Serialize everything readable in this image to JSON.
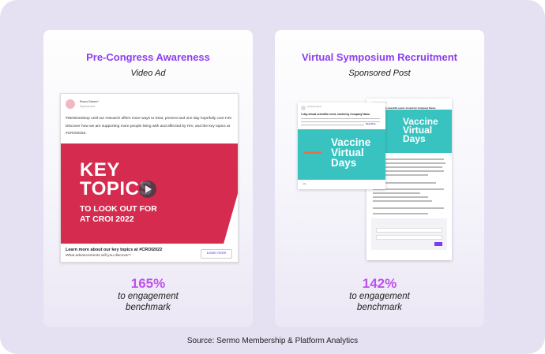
{
  "cards": [
    {
      "title": "Pre-Congress Awareness",
      "subtitle": "Video Ad",
      "metric": "165%",
      "metric_desc_1": "to engagement",
      "metric_desc_2": "benchmark",
      "ad": {
        "brand": "Brand Name*",
        "sponsored": "Sponsored",
        "text": "#WeWontStop until our research offers more ways to treat, prevent and one day hopefully cure HIV. Discover how we are supporting more people living with and affected by HIV, and the key topics at #CROI2022.",
        "headline_1": "KEY",
        "headline_2": "TOPICS",
        "subhead_1": "TO LOOK OUT FOR",
        "subhead_2": "AT CROI 2022",
        "cta_title": "Learn more about our key topics at #CROI2022",
        "cta_sub": "What advancements will you discover?",
        "button": "Learn more",
        "banner_color": "#d42b4f"
      }
    },
    {
      "title": "Virtual Symposium Recruitment",
      "subtitle": "Sponsored Post",
      "metric": "142%",
      "metric_desc_1": "to engagement",
      "metric_desc_2": "benchmark",
      "post": {
        "company": "Company Name",
        "event_title": "3 day virtual scientific event, hosted by Company Name",
        "read_more": "Read More",
        "v1": "Vaccine",
        "v2": "Virtual",
        "v3": "Days",
        "like": "Like",
        "banner_color": "#38c3c1",
        "submit_color": "#7a3ef0"
      }
    }
  ],
  "source": "Source: Sermo Membership & Platform Analytics",
  "colors": {
    "title": "#8b3ef0",
    "metric": "#c04ff0",
    "background": "#e5e1f3"
  }
}
